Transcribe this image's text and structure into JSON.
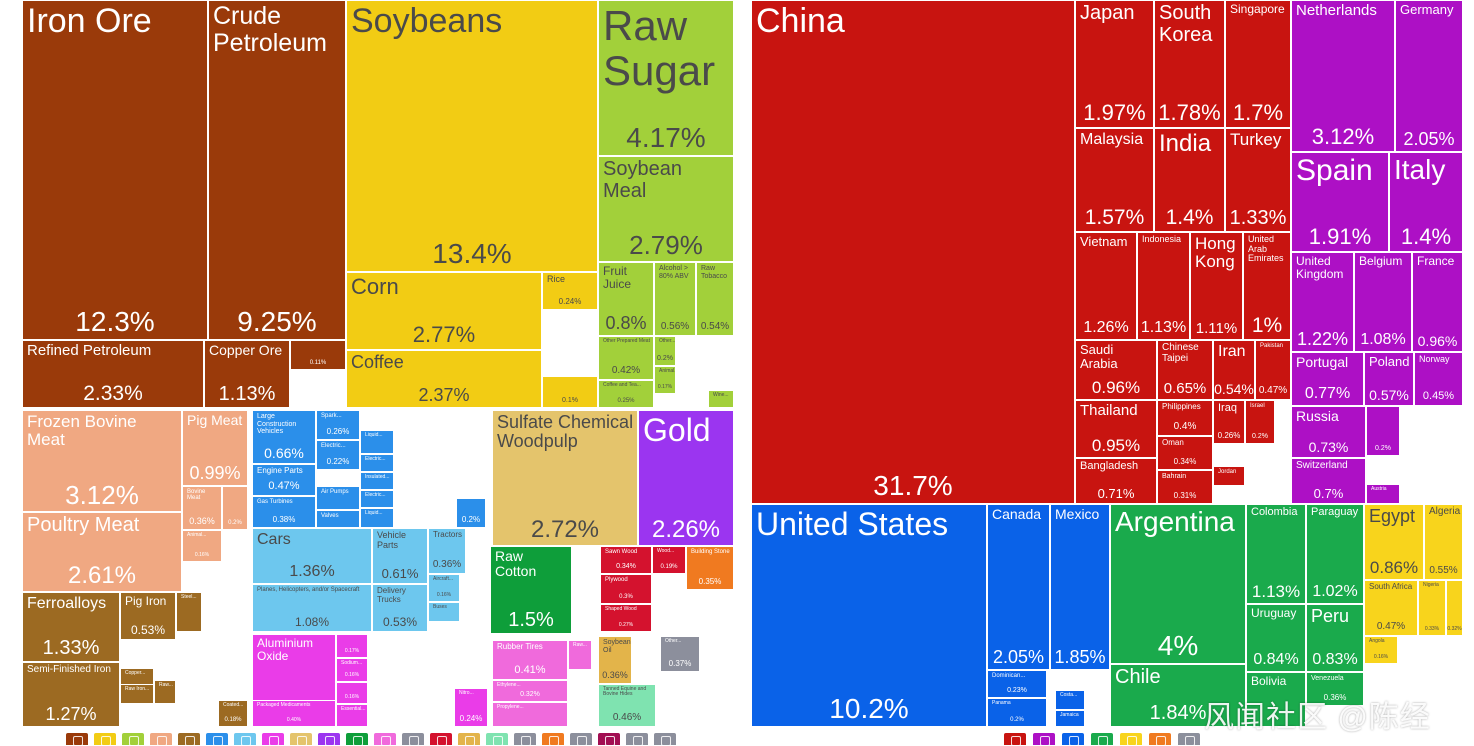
{
  "palette": {
    "dark_brown": "#9a3a0a",
    "mid_brown": "#a25a14",
    "yellow": "#f2cc14",
    "lime": "#a2d03a",
    "salmon": "#f0a882",
    "brown2": "#9c6a22",
    "blue": "#2b8fea",
    "light_blue": "#6dc7ee",
    "tan": "#e4c46c",
    "purple": "#9b35f0",
    "green": "#0e9e3a",
    "red": "#d4122e",
    "orange": "#f07a20",
    "magenta": "#ea3ce8",
    "pink": "#f06adc",
    "olive": "#e3b44a",
    "mint": "#7fe3b0",
    "gray": "#8c8f9c",
    "maroon": "#a20e52",
    "china_red": "#c81410",
    "asia_red": "#c81410",
    "europe": "#ad10c5",
    "na_blue": "#0a62e8",
    "sa_green": "#1aaa4c",
    "africa": "#f8d41c"
  },
  "chart_data": [
    {
      "type": "treemap",
      "title": "",
      "items": [
        {
          "label": "Iron Ore",
          "value": 12.3,
          "display": "12.3%"
        },
        {
          "label": "Crude Petroleum",
          "value": 9.25,
          "display": "9.25%"
        },
        {
          "label": "Refined Petroleum",
          "value": 2.33,
          "display": "2.33%"
        },
        {
          "label": "Copper Ore",
          "value": 1.13,
          "display": "1.13%"
        },
        {
          "label": "",
          "value": 0.11,
          "display": "0.11%"
        },
        {
          "label": "Soybeans",
          "value": 13.4,
          "display": "13.4%"
        },
        {
          "label": "Corn",
          "value": 2.77,
          "display": "2.77%"
        },
        {
          "label": "Coffee",
          "value": 2.37,
          "display": "2.37%"
        },
        {
          "label": "Rice",
          "value": 0.24,
          "display": "0.24%"
        },
        {
          "label": "",
          "value": 0.1,
          "display": "0.1%"
        },
        {
          "label": "Raw Sugar",
          "value": 4.17,
          "display": "4.17%"
        },
        {
          "label": "Soybean Meal",
          "value": 2.79,
          "display": "2.79%"
        },
        {
          "label": "Fruit Juice",
          "value": 0.8,
          "display": "0.8%"
        },
        {
          "label": "Alcohol > 80% ABV",
          "value": 0.56,
          "display": "0.56%"
        },
        {
          "label": "Raw Tobacco",
          "value": 0.54,
          "display": "0.54%"
        },
        {
          "label": "Other Prepared Meat",
          "value": 0.42,
          "display": "0.42%"
        },
        {
          "label": "Other...",
          "value": 0.2,
          "display": "0.2%"
        },
        {
          "label": "Animal...",
          "value": 0.17,
          "display": "0.17%"
        },
        {
          "label": "Coffee and Tea...",
          "value": 0.25,
          "display": "0.25%"
        },
        {
          "label": "Wine...",
          "value": 0.1,
          "display": ""
        },
        {
          "label": "Frozen Bovine Meat",
          "value": 3.12,
          "display": "3.12%"
        },
        {
          "label": "Poultry Meat",
          "value": 2.61,
          "display": "2.61%"
        },
        {
          "label": "Pig Meat",
          "value": 0.99,
          "display": "0.99%"
        },
        {
          "label": "Bovine Meat",
          "value": 0.36,
          "display": "0.36%"
        },
        {
          "label": "",
          "value": 0.2,
          "display": "0.2%"
        },
        {
          "label": "Animal...",
          "value": 0.16,
          "display": "0.16%"
        },
        {
          "label": "Ferroalloys",
          "value": 1.33,
          "display": "1.33%"
        },
        {
          "label": "Semi-Finished Iron",
          "value": 1.27,
          "display": "1.27%"
        },
        {
          "label": "Pig Iron",
          "value": 0.53,
          "display": "0.53%"
        },
        {
          "label": "Steel...",
          "value": 0.2,
          "display": ""
        },
        {
          "label": "Copper...",
          "value": 0.2,
          "display": ""
        },
        {
          "label": "Raw Iron...",
          "value": 0.2,
          "display": ""
        },
        {
          "label": "Raw...",
          "value": 0.2,
          "display": ""
        },
        {
          "label": "Coated...",
          "value": 0.18,
          "display": "0.18%"
        },
        {
          "label": "Large Construction Vehicles",
          "value": 0.66,
          "display": "0.66%"
        },
        {
          "label": "Engine Parts",
          "value": 0.47,
          "display": "0.47%"
        },
        {
          "label": "Gas Turbines",
          "value": 0.38,
          "display": "0.38%"
        },
        {
          "label": "Spark...",
          "value": 0.26,
          "display": "0.26%"
        },
        {
          "label": "Electric...",
          "value": 0.22,
          "display": "0.22%"
        },
        {
          "label": "Air Pumps",
          "value": 0.2,
          "display": ""
        },
        {
          "label": "Valves",
          "value": 0.2,
          "display": ""
        },
        {
          "label": "Liquid...",
          "value": 0.2,
          "display": ""
        },
        {
          "label": "Electric...",
          "value": 0.2,
          "display": ""
        },
        {
          "label": "Insulated...",
          "value": 0.2,
          "display": ""
        },
        {
          "label": "Electric...",
          "value": 0.2,
          "display": ""
        },
        {
          "label": "Liquid...",
          "value": 0.2,
          "display": ""
        },
        {
          "label": "",
          "value": 0.2,
          "display": "0.2%"
        },
        {
          "label": "Cars",
          "value": 1.36,
          "display": "1.36%"
        },
        {
          "label": "Vehicle Parts",
          "value": 0.61,
          "display": "0.61%"
        },
        {
          "label": "Tractors",
          "value": 0.36,
          "display": "0.36%"
        },
        {
          "label": "Planes, Helicopters, and/or Spacecraft",
          "value": 1.08,
          "display": "1.08%"
        },
        {
          "label": "Delivery Trucks",
          "value": 0.53,
          "display": "0.53%"
        },
        {
          "label": "Aircraft...",
          "value": 0.16,
          "display": "0.16%"
        },
        {
          "label": "Buses",
          "value": 0.16,
          "display": ""
        },
        {
          "label": "Aluminium Oxide",
          "value": 1.13,
          "display": "1.13%"
        },
        {
          "label": "Packaged Medicaments",
          "value": 0.4,
          "display": "0.40%"
        },
        {
          "label": "",
          "value": 0.17,
          "display": "0.17%"
        },
        {
          "label": "Sodium...",
          "value": 0.16,
          "display": "0.16%"
        },
        {
          "label": "",
          "value": 0.16,
          "display": "0.16%"
        },
        {
          "label": "Essential...",
          "value": 0.16,
          "display": ""
        },
        {
          "label": "Nitro...",
          "value": 0.24,
          "display": "0.24%"
        },
        {
          "label": "Sulfate Chemical Woodpulp",
          "value": 2.72,
          "display": "2.72%"
        },
        {
          "label": "Gold",
          "value": 2.26,
          "display": "2.26%"
        },
        {
          "label": "Raw Cotton",
          "value": 1.5,
          "display": "1.5%"
        },
        {
          "label": "Sawn Wood",
          "value": 0.34,
          "display": "0.34%"
        },
        {
          "label": "Wood...",
          "value": 0.19,
          "display": "0.19%"
        },
        {
          "label": "Building Stone",
          "value": 0.35,
          "display": "0.35%"
        },
        {
          "label": "Plywood",
          "value": 0.3,
          "display": "0.3%"
        },
        {
          "label": "Shaped Wood",
          "value": 0.27,
          "display": "0.27%"
        },
        {
          "label": "Rubber Tires",
          "value": 0.41,
          "display": "0.41%"
        },
        {
          "label": "Raw...",
          "value": 0.2,
          "display": ""
        },
        {
          "label": "Ethylene...",
          "value": 0.32,
          "display": "0.32%"
        },
        {
          "label": "Propylene...",
          "value": 0.2,
          "display": ""
        },
        {
          "label": "Soybean Oil",
          "value": 0.36,
          "display": "0.36%"
        },
        {
          "label": "Other...",
          "value": 0.37,
          "display": "0.37%"
        },
        {
          "label": "Tanned Equine and Bovine Hides",
          "value": 0.46,
          "display": "0.46%"
        }
      ]
    },
    {
      "type": "treemap",
      "title": "",
      "items": [
        {
          "label": "China",
          "value": 31.7,
          "display": "31.7%"
        },
        {
          "label": "Japan",
          "value": 1.97,
          "display": "1.97%"
        },
        {
          "label": "South Korea",
          "value": 1.78,
          "display": "1.78%"
        },
        {
          "label": "Singapore",
          "value": 1.7,
          "display": "1.7%"
        },
        {
          "label": "Malaysia",
          "value": 1.57,
          "display": "1.57%"
        },
        {
          "label": "India",
          "value": 1.4,
          "display": "1.4%"
        },
        {
          "label": "Turkey",
          "value": 1.33,
          "display": "1.33%"
        },
        {
          "label": "Vietnam",
          "value": 1.26,
          "display": "1.26%"
        },
        {
          "label": "Indonesia",
          "value": 1.13,
          "display": "1.13%"
        },
        {
          "label": "Hong Kong",
          "value": 1.11,
          "display": "1.11%"
        },
        {
          "label": "United Arab Emirates",
          "value": 1.0,
          "display": "1%"
        },
        {
          "label": "Saudi Arabia",
          "value": 0.96,
          "display": "0.96%"
        },
        {
          "label": "Chinese Taipei",
          "value": 0.65,
          "display": "0.65%"
        },
        {
          "label": "Iran",
          "value": 0.54,
          "display": "0.54%"
        },
        {
          "label": "Pakistan",
          "value": 0.47,
          "display": "0.47%"
        },
        {
          "label": "Thailand",
          "value": 0.95,
          "display": "0.95%"
        },
        {
          "label": "Philippines",
          "value": 0.4,
          "display": "0.4%"
        },
        {
          "label": "Iraq",
          "value": 0.26,
          "display": "0.26%"
        },
        {
          "label": "Israel",
          "value": 0.2,
          "display": "0.2%"
        },
        {
          "label": "Oman",
          "value": 0.34,
          "display": "0.34%"
        },
        {
          "label": "Jordan",
          "value": 0.15,
          "display": ""
        },
        {
          "label": "Bangladesh",
          "value": 0.71,
          "display": "0.71%"
        },
        {
          "label": "Bahrain",
          "value": 0.31,
          "display": "0.31%"
        },
        {
          "label": "Netherlands",
          "value": 3.12,
          "display": "3.12%"
        },
        {
          "label": "Germany",
          "value": 2.05,
          "display": "2.05%"
        },
        {
          "label": "Spain",
          "value": 1.91,
          "display": "1.91%"
        },
        {
          "label": "Italy",
          "value": 1.4,
          "display": "1.4%"
        },
        {
          "label": "United Kingdom",
          "value": 1.22,
          "display": "1.22%"
        },
        {
          "label": "Belgium",
          "value": 1.08,
          "display": "1.08%"
        },
        {
          "label": "France",
          "value": 0.96,
          "display": "0.96%"
        },
        {
          "label": "Portugal",
          "value": 0.77,
          "display": "0.77%"
        },
        {
          "label": "Poland",
          "value": 0.57,
          "display": "0.57%"
        },
        {
          "label": "Norway",
          "value": 0.45,
          "display": "0.45%"
        },
        {
          "label": "Russia",
          "value": 0.73,
          "display": "0.73%"
        },
        {
          "label": "",
          "value": 0.2,
          "display": "0.2%"
        },
        {
          "label": "Switzerland",
          "value": 0.7,
          "display": "0.7%"
        },
        {
          "label": "Austria",
          "value": 0.15,
          "display": ""
        },
        {
          "label": "United States",
          "value": 10.2,
          "display": "10.2%"
        },
        {
          "label": "Canada",
          "value": 2.05,
          "display": "2.05%"
        },
        {
          "label": "Mexico",
          "value": 1.85,
          "display": "1.85%"
        },
        {
          "label": "Dominican...",
          "value": 0.23,
          "display": "0.23%"
        },
        {
          "label": "Panama",
          "value": 0.2,
          "display": "0.2%"
        },
        {
          "label": "Costa...",
          "value": 0.15,
          "display": ""
        },
        {
          "label": "Jamaica",
          "value": 0.15,
          "display": ""
        },
        {
          "label": "Argentina",
          "value": 4.0,
          "display": "4%"
        },
        {
          "label": "Chile",
          "value": 1.84,
          "display": "1.84%"
        },
        {
          "label": "Colombia",
          "value": 1.13,
          "display": "1.13%"
        },
        {
          "label": "Paraguay",
          "value": 1.02,
          "display": "1.02%"
        },
        {
          "label": "Uruguay",
          "value": 0.84,
          "display": "0.84%"
        },
        {
          "label": "Peru",
          "value": 0.83,
          "display": "0.83%"
        },
        {
          "label": "Bolivia",
          "value": 0.6,
          "display": ""
        },
        {
          "label": "Venezuela",
          "value": 0.36,
          "display": "0.36%"
        },
        {
          "label": "Egypt",
          "value": 0.86,
          "display": "0.86%"
        },
        {
          "label": "Algeria",
          "value": 0.55,
          "display": "0.55%"
        },
        {
          "label": "South Africa",
          "value": 0.47,
          "display": "0.47%"
        },
        {
          "label": "Nigeria",
          "value": 0.33,
          "display": "0.33%"
        },
        {
          "label": "",
          "value": 0.32,
          "display": "0.32%"
        },
        {
          "label": "Angola",
          "value": 0.16,
          "display": "0.16%"
        }
      ]
    }
  ],
  "watermark": "风闻社区 @陈经",
  "legend": {
    "products": [
      "mineral-icon",
      "vegetable-icon",
      "foodstuff-icon",
      "animal-icon",
      "metal-icon",
      "machine-icon",
      "transport-icon",
      "chemical-icon",
      "paper-icon",
      "precious-icon",
      "textile-icon",
      "plastic-icon",
      "stone-icon",
      "wood-icon",
      "fat-icon",
      "hide-icon",
      "misc-icon",
      "footwear-icon",
      "weapons-icon",
      "art-icon",
      "instrument-icon",
      "service-icon"
    ],
    "regions": [
      "asia-icon",
      "europe-icon",
      "north-america-icon",
      "south-america-icon",
      "africa-icon",
      "oceania-icon",
      "other-icon"
    ]
  }
}
